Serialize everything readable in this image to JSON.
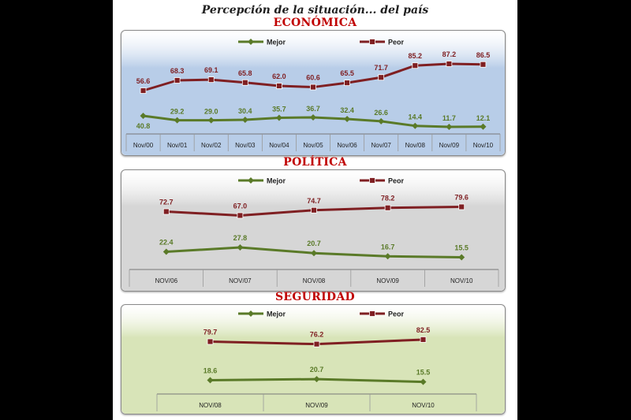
{
  "title": "Percepción de la situación... del país",
  "colors": {
    "mejor": "#5a7a28",
    "peor": "#7f1f22"
  },
  "chart_data": [
    {
      "type": "line",
      "title": "ECONÓMICA",
      "categories": [
        "Nov/00",
        "Nov/01",
        "Nov/02",
        "Nov/03",
        "Nov/04",
        "Nov/05",
        "Nov/06",
        "Nov/07",
        "Nov/08",
        "Nov/09",
        "Nov/10"
      ],
      "series": [
        {
          "name": "Mejor",
          "values": [
            40.8,
            29.2,
            29.0,
            30.4,
            35.7,
            36.7,
            32.4,
            26.6,
            14.4,
            11.7,
            12.1
          ]
        },
        {
          "name": "Peor",
          "values": [
            56.6,
            68.3,
            69.1,
            65.8,
            62.0,
            60.6,
            65.5,
            71.7,
            85.2,
            87.2,
            86.5
          ]
        }
      ],
      "legend": "top",
      "background": "#b8cde8"
    },
    {
      "type": "line",
      "title": "POLÍTICA",
      "categories": [
        "NOV/06",
        "NOV/07",
        "NOV/08",
        "NOV/09",
        "NOV/10"
      ],
      "series": [
        {
          "name": "Mejor",
          "values": [
            22.4,
            27.8,
            20.7,
            16.7,
            15.5
          ]
        },
        {
          "name": "Peor",
          "values": [
            72.7,
            67.0,
            74.7,
            78.2,
            79.6
          ]
        }
      ],
      "legend": "top",
      "background": "#d6d6d6"
    },
    {
      "type": "line",
      "title": "SEGURIDAD",
      "categories": [
        "NOV/08",
        "NOV/09",
        "NOV/10"
      ],
      "series": [
        {
          "name": "Mejor",
          "values": [
            18.6,
            20.7,
            15.5
          ]
        },
        {
          "name": "Peor",
          "values": [
            79.7,
            76.2,
            82.5
          ]
        }
      ],
      "legend": "top",
      "background": "#d8e4b8"
    }
  ]
}
